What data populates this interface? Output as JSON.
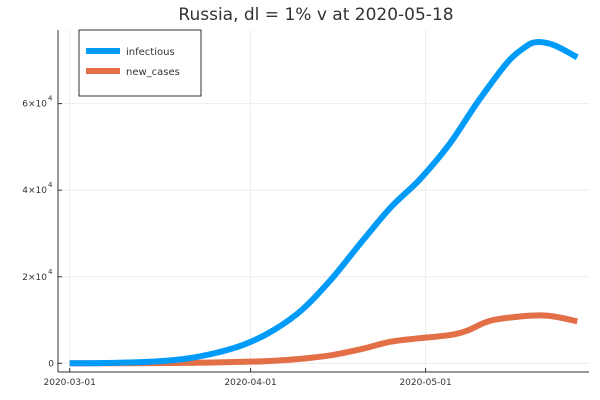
{
  "chart_data": {
    "type": "line",
    "title": "Russia,  dl = 1% v at 2020-05-18",
    "xlabel": "",
    "ylabel": "",
    "x_start": "2020-03-01",
    "x_end": "2020-05-27",
    "xlim": [
      "2020-02-28",
      "2020-05-29"
    ],
    "ylim": [
      -2000,
      77000
    ],
    "x_ticks": [
      {
        "date": "2020-03-01",
        "label": "2020-03-01"
      },
      {
        "date": "2020-04-01",
        "label": "2020-04-01"
      },
      {
        "date": "2020-05-01",
        "label": "2020-05-01"
      }
    ],
    "y_ticks": [
      {
        "value": 0,
        "label": "0",
        "mant": "",
        "exp": ""
      },
      {
        "value": 20000,
        "label": "",
        "mant": "2×10",
        "exp": "4"
      },
      {
        "value": 40000,
        "label": "",
        "mant": "4×10",
        "exp": "4"
      },
      {
        "value": 60000,
        "label": "",
        "mant": "6×10",
        "exp": "4"
      }
    ],
    "grid": true,
    "legend_position": "top-left",
    "series": [
      {
        "name": "infectious",
        "color": "#009af9",
        "points": [
          [
            "2020-03-01",
            0
          ],
          [
            "2020-03-06",
            50
          ],
          [
            "2020-03-11",
            200
          ],
          [
            "2020-03-16",
            450
          ],
          [
            "2020-03-21",
            1100
          ],
          [
            "2020-03-26",
            2400
          ],
          [
            "2020-03-31",
            4400
          ],
          [
            "2020-04-05",
            7700
          ],
          [
            "2020-04-10",
            12600
          ],
          [
            "2020-04-15",
            19700
          ],
          [
            "2020-04-20",
            28000
          ],
          [
            "2020-04-25",
            36000
          ],
          [
            "2020-04-30",
            42500
          ],
          [
            "2020-05-05",
            50500
          ],
          [
            "2020-05-10",
            60500
          ],
          [
            "2020-05-15",
            69500
          ],
          [
            "2020-05-18",
            73000
          ],
          [
            "2020-05-20",
            74200
          ],
          [
            "2020-05-23",
            73500
          ],
          [
            "2020-05-27",
            70700
          ]
        ]
      },
      {
        "name": "new_cases",
        "color": "#e26f46",
        "points": [
          [
            "2020-03-01",
            0
          ],
          [
            "2020-03-11",
            20
          ],
          [
            "2020-03-21",
            100
          ],
          [
            "2020-03-31",
            350
          ],
          [
            "2020-04-05",
            600
          ],
          [
            "2020-04-10",
            1100
          ],
          [
            "2020-04-15",
            1900
          ],
          [
            "2020-04-20",
            3300
          ],
          [
            "2020-04-25",
            5000
          ],
          [
            "2020-04-30",
            5800
          ],
          [
            "2020-05-05",
            6500
          ],
          [
            "2020-05-08",
            7500
          ],
          [
            "2020-05-12",
            9800
          ],
          [
            "2020-05-17",
            10800
          ],
          [
            "2020-05-22",
            11000
          ],
          [
            "2020-05-27",
            9700
          ]
        ]
      }
    ]
  }
}
